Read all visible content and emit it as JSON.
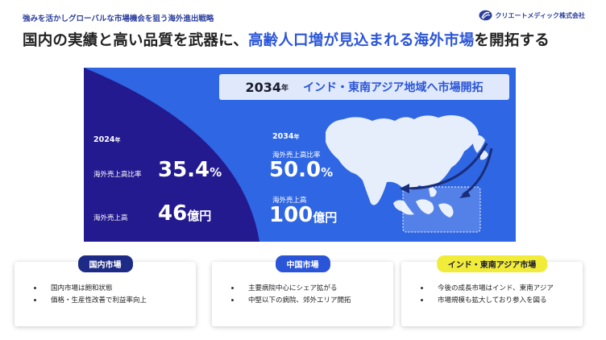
{
  "header": {
    "subtitle": "強みを活かしグローバルな市場機会を狙う海外進出戦略",
    "logo_text": "クリエートメディック株式会社",
    "headline_part1": "国内の実績と高い品質を武器に、",
    "headline_highlight": "高齢人口増が見込まれる海外市場",
    "headline_part2": "を開拓する"
  },
  "panel": {
    "banner_year": "2034",
    "banner_nen": "年",
    "banner_region": "インド・東南アジア地域へ市場開拓",
    "left": {
      "year": "2024",
      "year_suffix": "年",
      "ratio_label": "海外売上高比率",
      "ratio_value": "35.4",
      "ratio_unit": "%",
      "sales_label": "海外売上高",
      "sales_value": "46",
      "sales_unit": "億円"
    },
    "right": {
      "year": "2034",
      "year_suffix": "年",
      "ratio_label": "海外売上高比率",
      "ratio_value": "50.0",
      "ratio_unit": "%",
      "sales_label": "海外売上高",
      "sales_value": "100",
      "sales_unit": "億円"
    },
    "map_icon": "asia-map-icon",
    "colors": {
      "panel_blue": "#2f66e3",
      "navy": "#241a8f",
      "banner_bg": "#dfe9fb"
    }
  },
  "cards": [
    {
      "title": "国内市場",
      "pill_bg": "#1d2b86",
      "pill_color": "#ffffff",
      "items": [
        "国内市場は飽和状態",
        "価格・生産性改善で利益率向上"
      ]
    },
    {
      "title": "中国市場",
      "pill_bg": "#2b55d9",
      "pill_color": "#ffffff",
      "items": [
        "主要病院中心にシェア拡がる",
        "中堅以下の病院、郊外エリア開拓"
      ]
    },
    {
      "title": "インド・東南アジア市場",
      "pill_bg": "#f1ec3a",
      "pill_color": "#1a1a2e",
      "items": [
        "今後の成長市場はインド、東南アジア",
        "市場規模も拡大しており参入を図る"
      ]
    }
  ]
}
